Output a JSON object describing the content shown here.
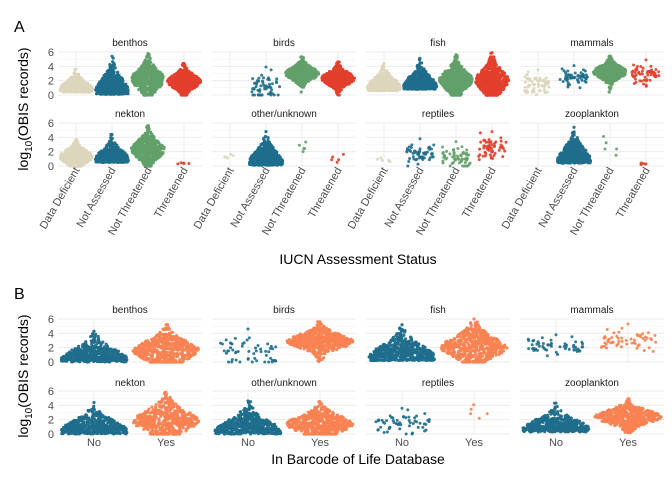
{
  "figure_labels": [
    "A",
    "B"
  ],
  "colors": {
    "Data Deficient": "#dcd6bd",
    "Not Assessed": "#1f6e8c",
    "Not Threatened": "#62a06a",
    "Threatened": "#e23f2c",
    "No": "#1f6e8c",
    "Yes": "#f98252"
  },
  "chart_data": [
    {
      "type": "scatter",
      "subtype": "beeswarm-facets",
      "panel_label": "A",
      "xlabel": "IUCN Assessment Status",
      "ylabel": "log10(OBIS records)",
      "ylabel_base": "log",
      "ylabel_sub": "10",
      "ylabel_rest": "(OBIS records)",
      "categories": [
        "Data Deficient",
        "Not Assessed",
        "Not Threatened",
        "Threatened"
      ],
      "ylim": [
        0,
        6
      ],
      "yticks": [
        0,
        2,
        4,
        6
      ],
      "facets": [
        {
          "name": "benthos",
          "groups": [
            {
              "category": "Data Deficient",
              "n": "many",
              "max": 3.6,
              "median": 0.8
            },
            {
              "category": "Not Assessed",
              "n": "many",
              "max": 5.4,
              "median": 0.5
            },
            {
              "category": "Not Threatened",
              "n": "many",
              "max": 5.8,
              "median": 2.2
            },
            {
              "category": "Threatened",
              "n": "many",
              "max": 4.4,
              "median": 1.9
            }
          ]
        },
        {
          "name": "birds",
          "groups": [
            {
              "category": "Not Assessed",
              "n": "sparse",
              "max": 3.9,
              "median": 1.2
            },
            {
              "category": "Not Threatened",
              "n": "many",
              "max": 5.3,
              "median": 3.0
            },
            {
              "category": "Threatened",
              "n": "many",
              "max": 4.6,
              "median": 2.3
            }
          ]
        },
        {
          "name": "fish",
          "groups": [
            {
              "category": "Data Deficient",
              "n": "many",
              "max": 4.4,
              "median": 1.0
            },
            {
              "category": "Not Assessed",
              "n": "many",
              "max": 5.1,
              "median": 1.2
            },
            {
              "category": "Not Threatened",
              "n": "many",
              "max": 5.6,
              "median": 2.1
            },
            {
              "category": "Threatened",
              "n": "many",
              "max": 5.9,
              "median": 2.0
            }
          ]
        },
        {
          "name": "mammals",
          "groups": [
            {
              "category": "Data Deficient",
              "n": "sparse",
              "max": 3.5,
              "median": 1.6
            },
            {
              "category": "Not Assessed",
              "n": "sparse",
              "max": 4.1,
              "median": 2.5
            },
            {
              "category": "Not Threatened",
              "n": "many",
              "max": 5.4,
              "median": 3.2
            },
            {
              "category": "Threatened",
              "n": "sparse",
              "max": 4.9,
              "median": 2.8
            }
          ]
        },
        {
          "name": "nekton",
          "groups": [
            {
              "category": "Data Deficient",
              "n": "many",
              "max": 3.7,
              "median": 1.3
            },
            {
              "category": "Not Assessed",
              "n": "many",
              "max": 4.4,
              "median": 0.9
            },
            {
              "category": "Not Threatened",
              "n": "many",
              "max": 5.6,
              "median": 2.3
            },
            {
              "category": "Threatened",
              "n": "few",
              "max": 0.5,
              "median": 0.3
            }
          ]
        },
        {
          "name": "other/unknown",
          "groups": [
            {
              "category": "Data Deficient",
              "n": "few",
              "max": 1.8,
              "median": 1.1
            },
            {
              "category": "Not Assessed",
              "n": "many",
              "max": 4.8,
              "median": 0.5
            },
            {
              "category": "Not Threatened",
              "n": "few",
              "max": 3.8,
              "median": 2.0
            },
            {
              "category": "Threatened",
              "n": "few",
              "max": 2.0,
              "median": 0.5
            }
          ]
        },
        {
          "name": "reptiles",
          "groups": [
            {
              "category": "Data Deficient",
              "n": "few",
              "max": 1.3,
              "median": 0.6
            },
            {
              "category": "Not Assessed",
              "n": "sparse",
              "max": 3.8,
              "median": 1.8
            },
            {
              "category": "Not Threatened",
              "n": "sparse",
              "max": 3.4,
              "median": 1.2
            },
            {
              "category": "Threatened",
              "n": "sparse",
              "max": 4.8,
              "median": 2.5
            }
          ]
        },
        {
          "name": "zooplankton",
          "groups": [
            {
              "category": "Not Assessed",
              "n": "many",
              "max": 5.4,
              "median": 0.8
            },
            {
              "category": "Not Threatened",
              "n": "few",
              "max": 5.0,
              "median": 1.5
            },
            {
              "category": "Threatened",
              "n": "few",
              "max": 0.5,
              "median": 0.2
            }
          ]
        }
      ]
    },
    {
      "type": "scatter",
      "subtype": "beeswarm-facets",
      "panel_label": "B",
      "xlabel": "In Barcode of Life Database",
      "ylabel": "log10(OBIS records)",
      "ylabel_base": "log",
      "ylabel_sub": "10",
      "ylabel_rest": "(OBIS records)",
      "categories": [
        "No",
        "Yes"
      ],
      "ylim": [
        0,
        6
      ],
      "yticks": [
        0,
        2,
        4,
        6
      ],
      "facets": [
        {
          "name": "benthos",
          "groups": [
            {
              "category": "No",
              "n": "many",
              "max": 4.3,
              "median": 0.4
            },
            {
              "category": "Yes",
              "n": "many",
              "max": 5.2,
              "median": 1.6
            }
          ]
        },
        {
          "name": "birds",
          "groups": [
            {
              "category": "No",
              "n": "sparse",
              "max": 4.6,
              "median": 1.4
            },
            {
              "category": "Yes",
              "n": "many",
              "max": 5.6,
              "median": 2.9
            }
          ]
        },
        {
          "name": "fish",
          "groups": [
            {
              "category": "No",
              "n": "many",
              "max": 5.2,
              "median": 0.6
            },
            {
              "category": "Yes",
              "n": "many",
              "max": 6.0,
              "median": 2.1
            }
          ]
        },
        {
          "name": "mammals",
          "groups": [
            {
              "category": "No",
              "n": "sparse",
              "max": 3.8,
              "median": 2.1
            },
            {
              "category": "Yes",
              "n": "sparse",
              "max": 5.3,
              "median": 3.1
            }
          ]
        },
        {
          "name": "nekton",
          "groups": [
            {
              "category": "No",
              "n": "many",
              "max": 4.4,
              "median": 0.4
            },
            {
              "category": "Yes",
              "n": "many",
              "max": 5.8,
              "median": 1.8
            }
          ]
        },
        {
          "name": "other/unknown",
          "groups": [
            {
              "category": "No",
              "n": "many",
              "max": 4.6,
              "median": 0.3
            },
            {
              "category": "Yes",
              "n": "many",
              "max": 4.5,
              "median": 1.4
            }
          ]
        },
        {
          "name": "reptiles",
          "groups": [
            {
              "category": "No",
              "n": "sparse",
              "max": 3.6,
              "median": 1.4
            },
            {
              "category": "Yes",
              "n": "few",
              "max": 4.7,
              "median": 2.2
            }
          ]
        },
        {
          "name": "zooplankton",
          "groups": [
            {
              "category": "No",
              "n": "many",
              "max": 4.3,
              "median": 0.7
            },
            {
              "category": "Yes",
              "n": "many",
              "max": 4.9,
              "median": 2.4
            }
          ]
        }
      ]
    }
  ]
}
